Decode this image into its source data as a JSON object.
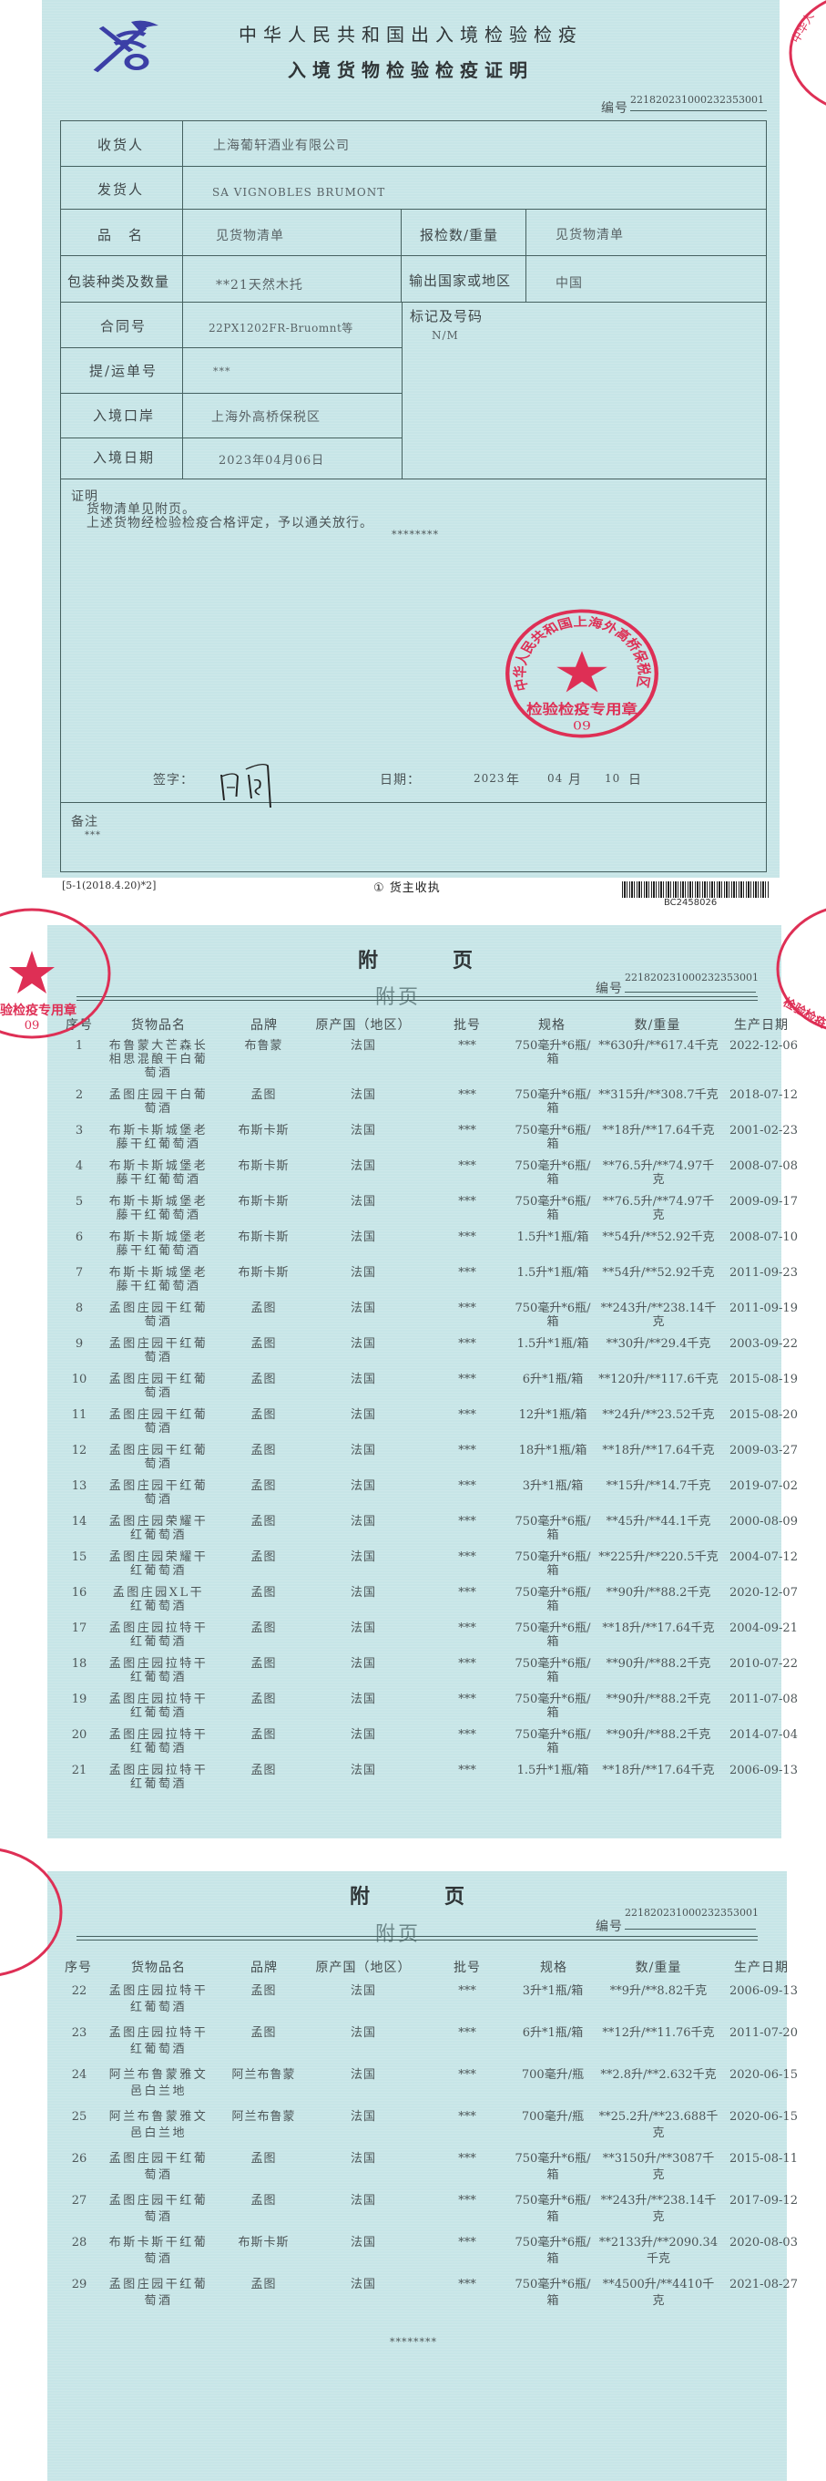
{
  "certificate": {
    "header_title": "中华人民共和国出入境检验检疫",
    "title": "入境货物检验检疫证明",
    "number_label": "编号",
    "number": "221820231000232353001",
    "consignee": {
      "label": "收货人",
      "value": "上海葡轩酒业有限公司"
    },
    "consignor": {
      "label": "发货人",
      "value": "SA VIGNOBLES BRUMONT"
    },
    "product_name": {
      "label": "品　名",
      "value": "见货物清单"
    },
    "declared_quantity": {
      "label": "报检数/重量",
      "value": "见货物清单"
    },
    "packing": {
      "label": "包装种类及数量",
      "value": "**21天然木托"
    },
    "export_country": {
      "label": "输出国家或地区",
      "value": "中国"
    },
    "contract_no": {
      "label": "合同号",
      "value": "22PX1202FR-Bruomnt等"
    },
    "bill_no": {
      "label": "提/运单号",
      "value": "***"
    },
    "entry_port": {
      "label": "入境口岸",
      "value": "上海外高桥保税区"
    },
    "entry_date": {
      "label": "入境日期",
      "value": "2023年04月06日"
    },
    "marks": {
      "label": "标记及号码",
      "value": "N/M"
    },
    "statement": {
      "label": "证明",
      "line1": "货物清单见附页。",
      "line2": "上述货物经检验检疫合格评定，予以通关放行。",
      "end_mark": "********"
    },
    "signature": {
      "label": "签字：",
      "date_label": "日期：",
      "year": "2023",
      "year_unit": "年",
      "month": "04",
      "month_unit": "月",
      "day": "10",
      "day_unit": "日"
    },
    "remarks": {
      "label": "备注",
      "value": "***"
    },
    "footer": {
      "form_code": "[5-1(2018.4.20)*2]",
      "copy_label": "① 货主收执",
      "barcode_text": "BC2458026"
    },
    "seal": {
      "top_text": "中华人民共和国上海外高桥保税区海关",
      "bottom_text": "检验检疫专用章",
      "code": "09",
      "color": "#de2f55"
    }
  },
  "appendix": {
    "title_left": "附",
    "title_right": "页",
    "subtitle": "附页",
    "number_label": "编号",
    "number": "221820231000232353001",
    "end_mark": "********",
    "columns": {
      "no": "序号",
      "name": "货物品名",
      "brand": "品牌",
      "origin": "原产国（地区）",
      "batch": "批号",
      "spec": "规格",
      "weight": "数/重量",
      "date": "生产日期"
    },
    "page1_rows": [
      {
        "no": "1",
        "name": "布鲁蒙大芒森长相思混酿干白葡萄酒",
        "brand": "布鲁蒙",
        "origin": "法国",
        "batch": "***",
        "spec": "750毫升*6瓶/箱",
        "weight": "**630升/**617.4千克",
        "date": "2022-12-06"
      },
      {
        "no": "2",
        "name": "孟图庄园干白葡萄酒",
        "brand": "孟图",
        "origin": "法国",
        "batch": "***",
        "spec": "750毫升*6瓶/箱",
        "weight": "**315升/**308.7千克",
        "date": "2018-07-12"
      },
      {
        "no": "3",
        "name": "布斯卡斯城堡老藤干红葡萄酒",
        "brand": "布斯卡斯",
        "origin": "法国",
        "batch": "***",
        "spec": "750毫升*6瓶/箱",
        "weight": "**18升/**17.64千克",
        "date": "2001-02-23"
      },
      {
        "no": "4",
        "name": "布斯卡斯城堡老藤干红葡萄酒",
        "brand": "布斯卡斯",
        "origin": "法国",
        "batch": "***",
        "spec": "750毫升*6瓶/箱",
        "weight": "**76.5升/**74.97千克",
        "date": "2008-07-08"
      },
      {
        "no": "5",
        "name": "布斯卡斯城堡老藤干红葡萄酒",
        "brand": "布斯卡斯",
        "origin": "法国",
        "batch": "***",
        "spec": "750毫升*6瓶/箱",
        "weight": "**76.5升/**74.97千克",
        "date": "2009-09-17"
      },
      {
        "no": "6",
        "name": "布斯卡斯城堡老藤干红葡萄酒",
        "brand": "布斯卡斯",
        "origin": "法国",
        "batch": "***",
        "spec": "1.5升*1瓶/箱",
        "weight": "**54升/**52.92千克",
        "date": "2008-07-10"
      },
      {
        "no": "7",
        "name": "布斯卡斯城堡老藤干红葡萄酒",
        "brand": "布斯卡斯",
        "origin": "法国",
        "batch": "***",
        "spec": "1.5升*1瓶/箱",
        "weight": "**54升/**52.92千克",
        "date": "2011-09-23"
      },
      {
        "no": "8",
        "name": "孟图庄园干红葡萄酒",
        "brand": "孟图",
        "origin": "法国",
        "batch": "***",
        "spec": "750毫升*6瓶/箱",
        "weight": "**243升/**238.14千克",
        "date": "2011-09-19"
      },
      {
        "no": "9",
        "name": "孟图庄园干红葡萄酒",
        "brand": "孟图",
        "origin": "法国",
        "batch": "***",
        "spec": "1.5升*1瓶/箱",
        "weight": "**30升/**29.4千克",
        "date": "2003-09-22"
      },
      {
        "no": "10",
        "name": "孟图庄园干红葡萄酒",
        "brand": "孟图",
        "origin": "法国",
        "batch": "***",
        "spec": "6升*1瓶/箱",
        "weight": "**120升/**117.6千克",
        "date": "2015-08-19"
      },
      {
        "no": "11",
        "name": "孟图庄园干红葡萄酒",
        "brand": "孟图",
        "origin": "法国",
        "batch": "***",
        "spec": "12升*1瓶/箱",
        "weight": "**24升/**23.52千克",
        "date": "2015-08-20"
      },
      {
        "no": "12",
        "name": "孟图庄园干红葡萄酒",
        "brand": "孟图",
        "origin": "法国",
        "batch": "***",
        "spec": "18升*1瓶/箱",
        "weight": "**18升/**17.64千克",
        "date": "2009-03-27"
      },
      {
        "no": "13",
        "name": "孟图庄园干红葡萄酒",
        "brand": "孟图",
        "origin": "法国",
        "batch": "***",
        "spec": "3升*1瓶/箱",
        "weight": "**15升/**14.7千克",
        "date": "2019-07-02"
      },
      {
        "no": "14",
        "name": "孟图庄园荣耀干红葡萄酒",
        "brand": "孟图",
        "origin": "法国",
        "batch": "***",
        "spec": "750毫升*6瓶/箱",
        "weight": "**45升/**44.1千克",
        "date": "2000-08-09"
      },
      {
        "no": "15",
        "name": "孟图庄园荣耀干红葡萄酒",
        "brand": "孟图",
        "origin": "法国",
        "batch": "***",
        "spec": "750毫升*6瓶/箱",
        "weight": "**225升/**220.5千克",
        "date": "2004-07-12"
      },
      {
        "no": "16",
        "name": "孟图庄园XL干红葡萄酒",
        "brand": "孟图",
        "origin": "法国",
        "batch": "***",
        "spec": "750毫升*6瓶/箱",
        "weight": "**90升/**88.2千克",
        "date": "2020-12-07"
      },
      {
        "no": "17",
        "name": "孟图庄园拉特干红葡萄酒",
        "brand": "孟图",
        "origin": "法国",
        "batch": "***",
        "spec": "750毫升*6瓶/箱",
        "weight": "**18升/**17.64千克",
        "date": "2004-09-21"
      },
      {
        "no": "18",
        "name": "孟图庄园拉特干红葡萄酒",
        "brand": "孟图",
        "origin": "法国",
        "batch": "***",
        "spec": "750毫升*6瓶/箱",
        "weight": "**90升/**88.2千克",
        "date": "2010-07-22"
      },
      {
        "no": "19",
        "name": "孟图庄园拉特干红葡萄酒",
        "brand": "孟图",
        "origin": "法国",
        "batch": "***",
        "spec": "750毫升*6瓶/箱",
        "weight": "**90升/**88.2千克",
        "date": "2011-07-08"
      },
      {
        "no": "20",
        "name": "孟图庄园拉特干红葡萄酒",
        "brand": "孟图",
        "origin": "法国",
        "batch": "***",
        "spec": "750毫升*6瓶/箱",
        "weight": "**90升/**88.2千克",
        "date": "2014-07-04"
      },
      {
        "no": "21",
        "name": "孟图庄园拉特干红葡萄酒",
        "brand": "孟图",
        "origin": "法国",
        "batch": "***",
        "spec": "1.5升*1瓶/箱",
        "weight": "**18升/**17.64千克",
        "date": "2006-09-13"
      }
    ],
    "page2_rows": [
      {
        "no": "22",
        "name": "孟图庄园拉特干红葡萄酒",
        "brand": "孟图",
        "origin": "法国",
        "batch": "***",
        "spec": "3升*1瓶/箱",
        "weight": "**9升/**8.82千克",
        "date": "2006-09-13"
      },
      {
        "no": "23",
        "name": "孟图庄园拉特干红葡萄酒",
        "brand": "孟图",
        "origin": "法国",
        "batch": "***",
        "spec": "6升*1瓶/箱",
        "weight": "**12升/**11.76千克",
        "date": "2011-07-20"
      },
      {
        "no": "24",
        "name": "阿兰布鲁蒙雅文邑白兰地",
        "brand": "阿兰布鲁蒙",
        "origin": "法国",
        "batch": "***",
        "spec": "700毫升/瓶",
        "weight": "**2.8升/**2.632千克",
        "date": "2020-06-15"
      },
      {
        "no": "25",
        "name": "阿兰布鲁蒙雅文邑白兰地",
        "brand": "阿兰布鲁蒙",
        "origin": "法国",
        "batch": "***",
        "spec": "700毫升/瓶",
        "weight": "**25.2升/**23.688千克",
        "date": "2020-06-15"
      },
      {
        "no": "26",
        "name": "孟图庄园干红葡萄酒",
        "brand": "孟图",
        "origin": "法国",
        "batch": "***",
        "spec": "750毫升*6瓶/箱",
        "weight": "**3150升/**3087千克",
        "date": "2015-08-11"
      },
      {
        "no": "27",
        "name": "孟图庄园干红葡萄酒",
        "brand": "孟图",
        "origin": "法国",
        "batch": "***",
        "spec": "750毫升*6瓶/箱",
        "weight": "**243升/**238.14千克",
        "date": "2017-09-12"
      },
      {
        "no": "28",
        "name": "布斯卡斯干红葡萄酒",
        "brand": "布斯卡斯",
        "origin": "法国",
        "batch": "***",
        "spec": "750毫升*6瓶/箱",
        "weight": "**2133升/**2090.34千克",
        "date": "2020-08-03"
      },
      {
        "no": "29",
        "name": "孟图庄园干红葡萄酒",
        "brand": "孟图",
        "origin": "法国",
        "batch": "***",
        "spec": "750毫升*6瓶/箱",
        "weight": "**4500升/**4410千克",
        "date": "2021-08-27"
      }
    ]
  }
}
